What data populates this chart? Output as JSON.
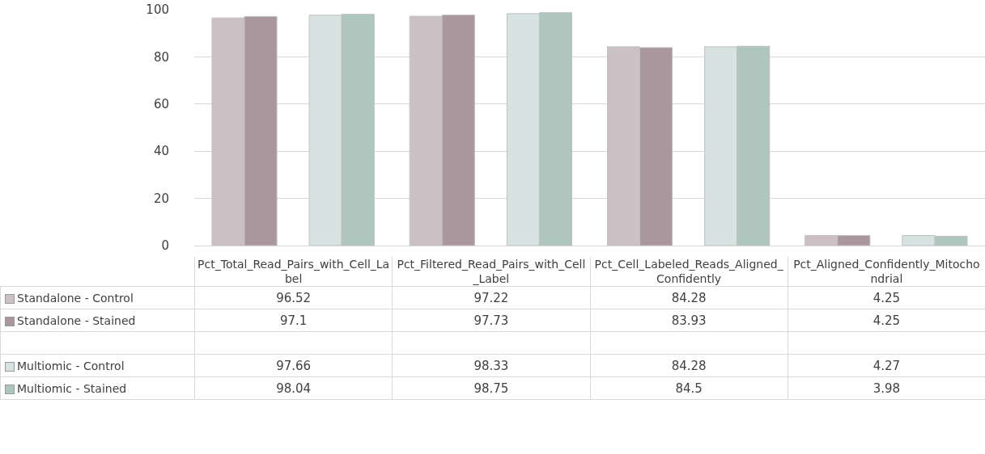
{
  "chart_data": {
    "type": "bar",
    "categories": [
      "Pct_Total_Read_Pairs_with_Cell_Label",
      "Pct_Filtered_Read_Pairs_with_Cell_Label",
      "Pct_Cell_Labeled_Reads_Aligned_Confidently",
      "Pct_Aligned_Confidently_Mitochondrial"
    ],
    "series": [
      {
        "name": "Standalone - Control",
        "color": "#cdc0c5",
        "values": [
          96.52,
          97.22,
          84.28,
          4.25
        ]
      },
      {
        "name": "Standalone - Stained",
        "color": "#aa979e",
        "values": [
          97.1,
          97.73,
          83.93,
          4.25
        ]
      },
      {
        "name": "Multiomic - Control",
        "color": "#d6e3e0",
        "values": [
          97.66,
          98.33,
          84.28,
          4.27
        ]
      },
      {
        "name": "Multiomic - Stained",
        "color": "#afc6bf",
        "values": [
          98.04,
          98.75,
          84.5,
          3.98
        ]
      }
    ],
    "ylim": [
      0,
      100
    ],
    "yticks": [
      0,
      20,
      40,
      60,
      80,
      100
    ],
    "grid": "y",
    "legend": "left",
    "data_labels": true,
    "tick_labels": "y"
  }
}
